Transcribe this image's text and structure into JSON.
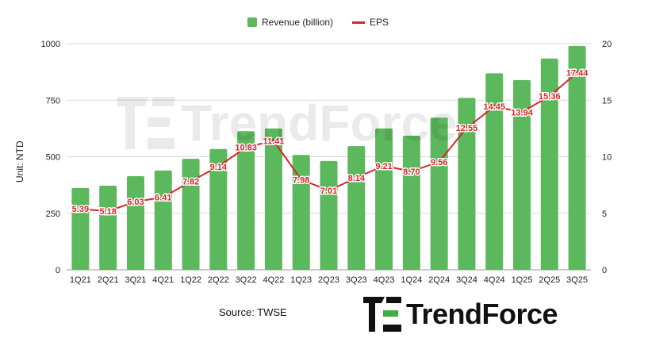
{
  "chart_data": {
    "type": "bar",
    "categories": [
      "1Q21",
      "2Q21",
      "3Q21",
      "4Q21",
      "1Q22",
      "2Q22",
      "3Q22",
      "4Q22",
      "1Q23",
      "2Q23",
      "3Q23",
      "4Q23",
      "1Q24",
      "2Q24",
      "3Q24",
      "4Q24",
      "1Q25",
      "2Q25",
      "3Q25"
    ],
    "series": [
      {
        "name": "Revenue (billion)",
        "type": "bar",
        "axis": "left",
        "color": "#5cb85c",
        "values": [
          362,
          372,
          414,
          439,
          491,
          534,
          613,
          625,
          508,
          481,
          547,
          625,
          593,
          673,
          760,
          869,
          839,
          934,
          990
        ]
      },
      {
        "name": "EPS",
        "type": "line",
        "axis": "right",
        "color": "#d62728",
        "values": [
          5.39,
          5.18,
          6.03,
          6.41,
          7.82,
          9.14,
          10.83,
          11.41,
          7.98,
          7.01,
          8.14,
          9.21,
          8.7,
          9.56,
          12.55,
          14.45,
          13.94,
          15.36,
          17.44
        ],
        "labels": [
          "5.39",
          "5.18",
          "6.03",
          "6.41",
          "7.82",
          "9.14",
          "10.83",
          "11.41",
          "7.98",
          "7.01",
          "8.14",
          "9.21",
          "8.70",
          "9.56",
          "12.55",
          "14.45",
          "13.94",
          "15.36",
          "17.44"
        ]
      }
    ],
    "ylabel": "Unit: NTD",
    "ylim": [
      0,
      1000
    ],
    "yticks": [
      "0",
      "250",
      "500",
      "750",
      "1000"
    ],
    "y2lim": [
      0,
      20
    ],
    "y2ticks": [
      "0",
      "5",
      "10",
      "15",
      "20"
    ],
    "grid": true,
    "legend_position": "top-center"
  },
  "source": "Source: TWSE",
  "brand": "TrendForce"
}
